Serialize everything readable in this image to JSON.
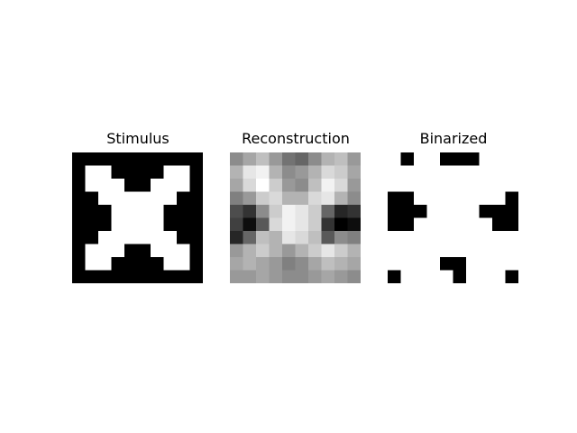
{
  "panels": [
    {
      "title": "Stimulus",
      "size": 10,
      "values": [
        [
          0,
          0,
          0,
          0,
          0,
          0,
          0,
          0,
          0,
          0
        ],
        [
          0,
          1,
          1,
          0,
          0,
          0,
          0,
          1,
          1,
          0
        ],
        [
          0,
          1,
          1,
          1,
          0,
          0,
          1,
          1,
          1,
          0
        ],
        [
          0,
          0,
          1,
          1,
          1,
          1,
          1,
          1,
          0,
          0
        ],
        [
          0,
          0,
          0,
          1,
          1,
          1,
          1,
          0,
          0,
          0
        ],
        [
          0,
          0,
          0,
          1,
          1,
          1,
          1,
          0,
          0,
          0
        ],
        [
          0,
          0,
          1,
          1,
          1,
          1,
          1,
          1,
          0,
          0
        ],
        [
          0,
          1,
          1,
          1,
          0,
          0,
          1,
          1,
          1,
          0
        ],
        [
          0,
          1,
          1,
          0,
          0,
          0,
          0,
          1,
          1,
          0
        ],
        [
          0,
          0,
          0,
          0,
          0,
          0,
          0,
          0,
          0,
          0
        ]
      ]
    },
    {
      "title": "Reconstruction",
      "size": 10,
      "values": [
        [
          0.55,
          0.65,
          0.75,
          0.6,
          0.45,
          0.4,
          0.55,
          0.7,
          0.75,
          0.6
        ],
        [
          0.7,
          0.9,
          0.95,
          0.7,
          0.55,
          0.6,
          0.7,
          0.85,
          0.8,
          0.65
        ],
        [
          0.65,
          0.85,
          1.0,
          0.8,
          0.6,
          0.55,
          0.75,
          0.95,
          0.85,
          0.6
        ],
        [
          0.5,
          0.6,
          0.8,
          0.85,
          0.7,
          0.7,
          0.85,
          0.9,
          0.7,
          0.55
        ],
        [
          0.3,
          0.2,
          0.55,
          0.8,
          0.95,
          0.9,
          0.8,
          0.4,
          0.15,
          0.2
        ],
        [
          0.25,
          0.05,
          0.35,
          0.85,
          0.95,
          0.9,
          0.8,
          0.2,
          0.0,
          0.05
        ],
        [
          0.15,
          0.4,
          0.75,
          0.7,
          0.9,
          0.85,
          0.75,
          0.35,
          0.55,
          0.5
        ],
        [
          0.6,
          0.7,
          0.8,
          0.7,
          0.6,
          0.7,
          0.8,
          0.9,
          0.8,
          0.7
        ],
        [
          0.65,
          0.7,
          0.65,
          0.6,
          0.5,
          0.55,
          0.65,
          0.75,
          0.7,
          0.65
        ],
        [
          0.6,
          0.6,
          0.65,
          0.6,
          0.55,
          0.55,
          0.6,
          0.65,
          0.6,
          0.55
        ]
      ]
    },
    {
      "title": "Binarized",
      "size": 10,
      "values": [
        [
          1,
          0,
          1,
          1,
          0,
          0,
          0,
          1,
          1,
          1
        ],
        [
          1,
          1,
          1,
          1,
          1,
          1,
          1,
          1,
          1,
          1
        ],
        [
          1,
          1,
          1,
          1,
          1,
          1,
          1,
          1,
          1,
          1
        ],
        [
          0,
          0,
          1,
          1,
          1,
          1,
          1,
          1,
          1,
          0
        ],
        [
          0,
          0,
          0,
          1,
          1,
          1,
          1,
          0,
          0,
          0
        ],
        [
          0,
          0,
          1,
          1,
          1,
          1,
          1,
          1,
          0,
          0
        ],
        [
          1,
          1,
          1,
          1,
          1,
          1,
          1,
          1,
          1,
          1
        ],
        [
          1,
          1,
          1,
          1,
          1,
          1,
          1,
          1,
          1,
          1
        ],
        [
          1,
          1,
          1,
          1,
          0,
          0,
          1,
          1,
          1,
          1
        ],
        [
          0,
          1,
          1,
          1,
          1,
          0,
          1,
          1,
          1,
          0
        ]
      ]
    }
  ]
}
